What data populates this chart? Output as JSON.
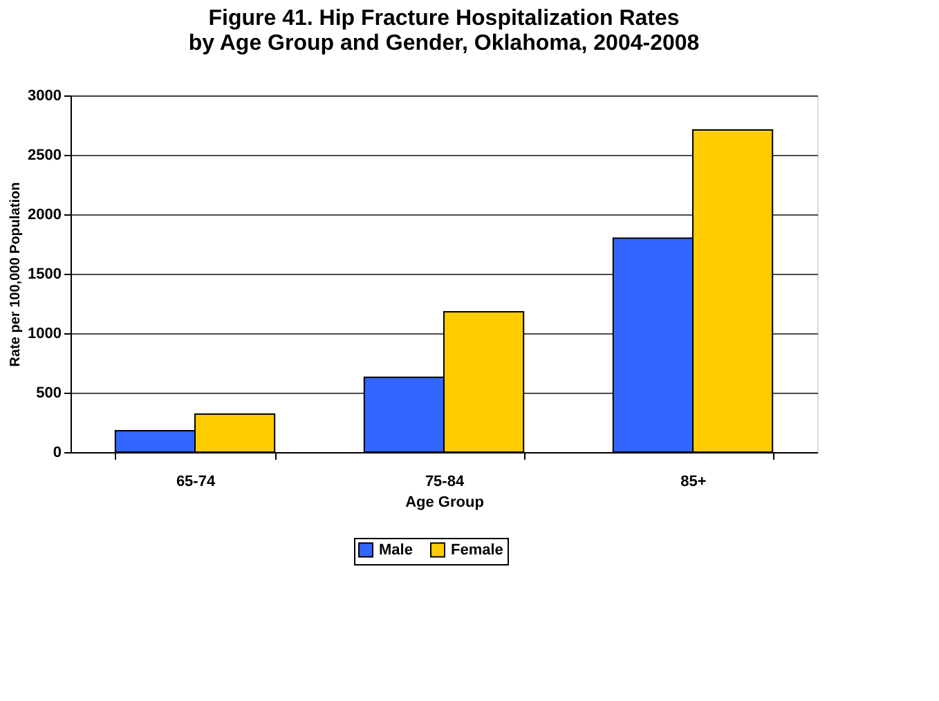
{
  "chart_data": {
    "type": "bar",
    "title": [
      "Figure 41. Hip Fracture Hospitalization Rates",
      "by Age Group and Gender, Oklahoma, 2004-2008"
    ],
    "xlabel": "Age Group",
    "ylabel": "Rate per 100,000 Population",
    "categories": [
      "65-74",
      "75-84",
      "85+"
    ],
    "series": [
      {
        "name": "Male",
        "color": "#3366ff",
        "values": [
          180,
          630,
          1800
        ]
      },
      {
        "name": "Female",
        "color": "#ffcc00",
        "values": [
          320,
          1180,
          2710
        ]
      }
    ],
    "ylim": [
      0,
      3000
    ],
    "yticks": [
      0,
      500,
      1000,
      1500,
      2000,
      2500,
      3000
    ],
    "grid": "y",
    "legend": "bottom"
  }
}
